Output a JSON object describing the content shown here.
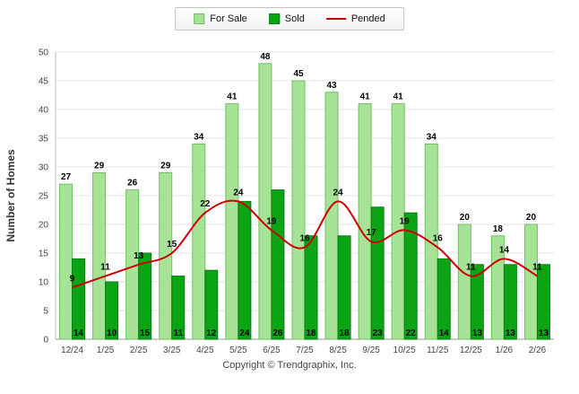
{
  "chart_data": {
    "type": "bar",
    "categories": [
      "12/24",
      "1/25",
      "2/25",
      "3/25",
      "4/25",
      "5/25",
      "6/25",
      "7/25",
      "8/25",
      "9/25",
      "10/25",
      "11/25",
      "12/25",
      "1/26",
      "2/26"
    ],
    "series": [
      {
        "name": "For Sale",
        "type": "bar",
        "color": "#A7E396",
        "border": "#6FBF63",
        "values": [
          27,
          29,
          26,
          29,
          34,
          41,
          48,
          45,
          43,
          41,
          41,
          34,
          20,
          18,
          20
        ]
      },
      {
        "name": "Sold",
        "type": "bar",
        "color": "#0AA414",
        "border": "#067D12",
        "values": [
          14,
          10,
          15,
          11,
          12,
          24,
          26,
          18,
          18,
          23,
          22,
          14,
          13,
          13,
          13
        ]
      },
      {
        "name": "Pended",
        "type": "line",
        "color": "#CC0000",
        "border": "#CC0000",
        "values": [
          9,
          11,
          13,
          15,
          22,
          24,
          19,
          16,
          24,
          17,
          19,
          16,
          11,
          14,
          11
        ]
      }
    ],
    "title": "",
    "xlabel": "",
    "ylabel": "Number of Homes",
    "ylim": [
      0,
      50
    ],
    "ytick_step": 5,
    "grid": true,
    "legend_position": "top"
  },
  "footer": {
    "copyright": "Copyright © Trendgraphix, Inc."
  }
}
